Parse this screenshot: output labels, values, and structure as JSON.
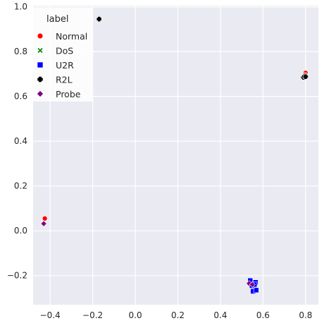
{
  "chart_data": {
    "type": "scatter",
    "title": "",
    "xlabel": "",
    "ylabel": "",
    "xlim": [
      -0.48,
      0.86
    ],
    "ylim": [
      -0.33,
      1.005
    ],
    "xticks": [
      -0.4,
      -0.2,
      0.0,
      0.2,
      0.4,
      0.6,
      0.8
    ],
    "xtick_labels": [
      "−0.4",
      "−0.2",
      "0.0",
      "0.2",
      "0.4",
      "0.6",
      "0.8"
    ],
    "yticks": [
      -0.2,
      0.0,
      0.2,
      0.4,
      0.6,
      0.8,
      1.0
    ],
    "ytick_labels": [
      "−0.2",
      "0.0",
      "0.2",
      "0.4",
      "0.6",
      "0.8",
      "1.0"
    ],
    "grid": true,
    "legend": {
      "title": "label",
      "placement": "top-left"
    },
    "series": [
      {
        "name": "Normal",
        "color": "#ff0000",
        "marker": "circle",
        "points": [
          [
            -0.425,
            0.055
          ],
          [
            0.8,
            0.705
          ],
          [
            0.798,
            0.695
          ],
          [
            0.555,
            -0.245
          ]
        ]
      },
      {
        "name": "DoS",
        "color": "#008000",
        "marker": "x",
        "points": []
      },
      {
        "name": "U2R",
        "color": "#0000ff",
        "marker": "square",
        "points": [
          [
            0.54,
            -0.222
          ],
          [
            0.558,
            -0.252
          ],
          [
            0.565,
            -0.23
          ],
          [
            0.553,
            -0.27
          ],
          [
            0.568,
            -0.265
          ],
          [
            0.548,
            -0.245
          ],
          [
            0.56,
            -0.24
          ]
        ]
      },
      {
        "name": "R2L",
        "color": "#000000",
        "marker": "plus",
        "points": [
          [
            -0.17,
            0.945
          ],
          [
            0.79,
            0.685
          ],
          [
            0.795,
            0.69
          ],
          [
            0.8,
            0.688
          ]
        ]
      },
      {
        "name": "Probe",
        "color": "#800080",
        "marker": "diamond",
        "points": [
          [
            -0.43,
            0.032
          ],
          [
            0.535,
            -0.235
          ],
          [
            0.55,
            -0.24
          ]
        ]
      }
    ]
  }
}
